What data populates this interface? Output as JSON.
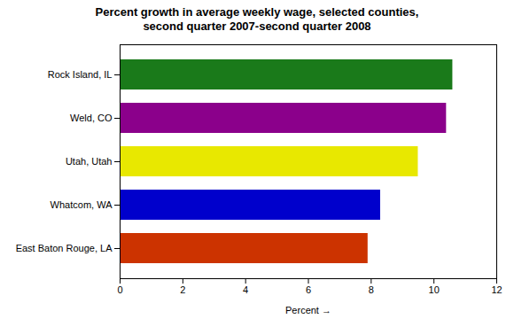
{
  "chart_data": {
    "type": "bar",
    "orientation": "horizontal",
    "title": "Percent growth in average weekly wage, selected counties,\nsecond quarter 2007-second quarter 2008",
    "categories": [
      "Rock Island, IL",
      "Weld, CO",
      "Utah, Utah",
      "Whatcom, WA",
      "East Baton Rouge, LA"
    ],
    "values": [
      10.6,
      10.4,
      9.5,
      8.3,
      7.9
    ],
    "colors": [
      "#1a7a1a",
      "#8b008b",
      "#e8e800",
      "#0000cc",
      "#cc3300"
    ],
    "xlabel": "Percent",
    "xlim": [
      0,
      12
    ],
    "xticks": [
      0,
      2,
      4,
      6,
      8,
      10,
      12
    ],
    "grid": false
  }
}
